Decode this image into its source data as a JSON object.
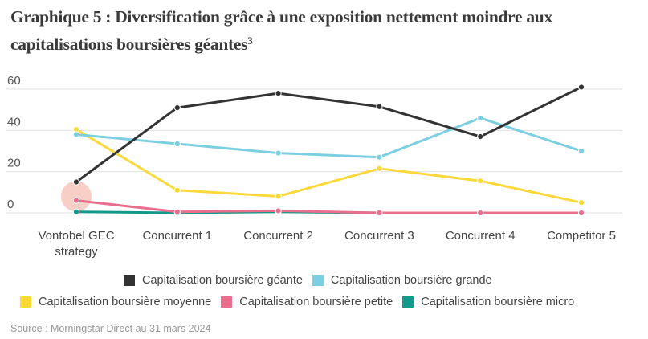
{
  "title": {
    "text": "Graphique 5 : Diversification grâce à une exposition nettement moindre aux capitalisations boursières géantes",
    "footnote": "3"
  },
  "source": "Source : Morningstar Direct au 31 mars 2024",
  "chart_data": {
    "type": "line",
    "title": "Graphique 5 : Diversification grâce à une exposition nettement moindre aux capitalisations boursières géantes",
    "xlabel": "",
    "ylabel": "",
    "ylim": [
      0,
      60
    ],
    "yticks": [
      0,
      20,
      40,
      60
    ],
    "grid": true,
    "legend_position": "bottom",
    "categories": [
      "Vontobel GEC strategy",
      "Concurrent 1",
      "Concurrent 2",
      "Concurrent 3",
      "Concurrent 4",
      "Competitor 5"
    ],
    "series": [
      {
        "name": "Capitalisation boursière géante",
        "color": "#333333",
        "values": [
          15,
          51,
          58,
          51.5,
          37,
          61
        ]
      },
      {
        "name": "Capitalisation boursière grande",
        "color": "#7ccfe0",
        "values": [
          38,
          33.5,
          29,
          27,
          46,
          30
        ]
      },
      {
        "name": "Capitalisation boursière moyenne",
        "color": "#fbd93b",
        "values": [
          40.5,
          11,
          8,
          21.5,
          15.5,
          5
        ]
      },
      {
        "name": "Capitalisation boursière petite",
        "color": "#e96f8e",
        "values": [
          6,
          0.5,
          1,
          0,
          0,
          0
        ]
      },
      {
        "name": "Capitalisation boursière micro",
        "color": "#12998a",
        "values": [
          0.5,
          0,
          0.5,
          0,
          0,
          0
        ]
      }
    ],
    "annotations": [
      {
        "type": "highlight-circle",
        "category": "Vontobel GEC strategy",
        "y": 8,
        "color": "#f7cfc6"
      }
    ]
  },
  "xaxis": {
    "labels": [
      [
        "Vontobel GEC",
        "strategy"
      ],
      [
        "Concurrent 1"
      ],
      [
        "Concurrent 2"
      ],
      [
        "Concurrent 3"
      ],
      [
        "Concurrent 4"
      ],
      [
        "Competitor 5"
      ]
    ]
  },
  "legend": {
    "row1": [
      {
        "label": "Capitalisation boursière géante",
        "color": "#333333"
      },
      {
        "label": "Capitalisation boursière grande",
        "color": "#7ccfe0"
      }
    ],
    "row2": [
      {
        "label": "Capitalisation boursière moyenne",
        "color": "#fbd93b"
      },
      {
        "label": "Capitalisation boursière petite",
        "color": "#e96f8e"
      },
      {
        "label": "Capitalisation boursière micro",
        "color": "#12998a"
      }
    ]
  }
}
